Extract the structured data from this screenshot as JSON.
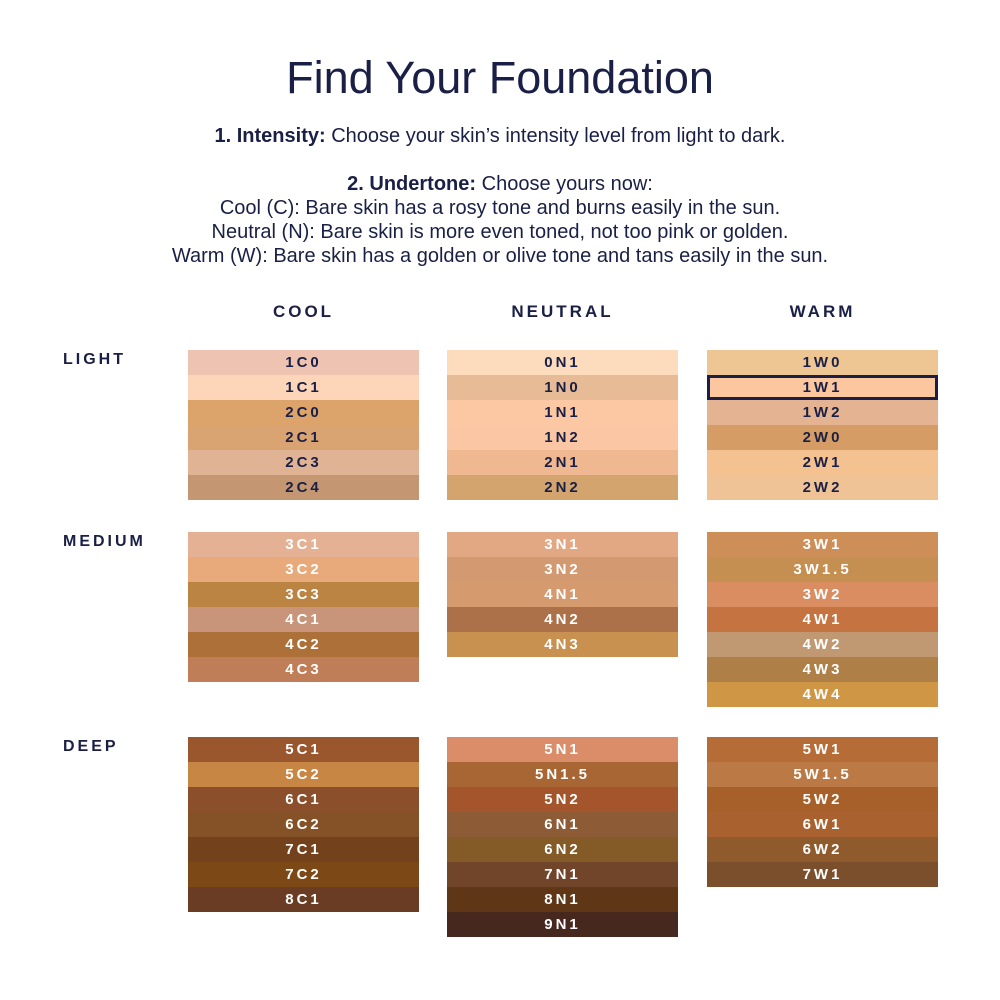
{
  "title": "Find Your Foundation",
  "step1": {
    "label": "1. Intensity:",
    "text": "Choose your skin’s intensity level from light to dark."
  },
  "step2": {
    "label": "2. Undertone:",
    "text": "Choose yours now:",
    "cool": "Cool (C): Bare skin has a rosy tone and burns easily in the sun.",
    "neutral": "Neutral (N): Bare skin is more even toned, not too pink or golden.",
    "warm": "Warm (W): Bare skin has a golden or olive tone and tans easily in the sun."
  },
  "columns": [
    "COOL",
    "NEUTRAL",
    "WARM"
  ],
  "text_colors": {
    "dark": "#1a1f45",
    "light": "#ffffff"
  },
  "selected_shade": "1W1",
  "groups": [
    {
      "label": "LIGHT",
      "text": "dark",
      "blocks": [
        [
          [
            "1C0",
            "#efc3b1"
          ],
          [
            "1C1",
            "#fdd5b8"
          ],
          [
            "2C0",
            "#dca46a"
          ],
          [
            "2C1",
            "#d9a472"
          ],
          [
            "2C3",
            "#dfb394"
          ],
          [
            "2C4",
            "#c49672"
          ]
        ],
        [
          [
            "0N1",
            "#fcdcbd"
          ],
          [
            "1N0",
            "#e6bb96"
          ],
          [
            "1N1",
            "#fcc8a3"
          ],
          [
            "1N2",
            "#fbc6a3"
          ],
          [
            "2N1",
            "#f0b891"
          ],
          [
            "2N2",
            "#d3a46e"
          ]
        ],
        [
          [
            "1W0",
            "#edc694"
          ],
          [
            "1W1",
            "#fcc79f"
          ],
          [
            "1W2",
            "#e4b391"
          ],
          [
            "2W0",
            "#d59d65"
          ],
          [
            "2W1",
            "#f4c190"
          ],
          [
            "2W2",
            "#efc396"
          ]
        ]
      ]
    },
    {
      "label": "MEDIUM",
      "text": "light",
      "blocks": [
        [
          [
            "3C1",
            "#e5b195"
          ],
          [
            "3C2",
            "#e8a97b"
          ],
          [
            "3C3",
            "#bc8443"
          ],
          [
            "4C1",
            "#c9957a"
          ],
          [
            "4C2",
            "#ad7038"
          ],
          [
            "4C3",
            "#bf7d58"
          ]
        ],
        [
          [
            "3N1",
            "#e1a883"
          ],
          [
            "3N2",
            "#d39a72"
          ],
          [
            "4N1",
            "#d59b6f"
          ],
          [
            "4N2",
            "#ac7148"
          ],
          [
            "4N3",
            "#c99150"
          ]
        ],
        [
          [
            "3W1",
            "#cd8f57"
          ],
          [
            "3W1.5",
            "#c58f52"
          ],
          [
            "3W2",
            "#da8d60"
          ],
          [
            "4W1",
            "#c57441"
          ],
          [
            "4W2",
            "#c09872"
          ],
          [
            "4W3",
            "#ae7f47"
          ],
          [
            "4W4",
            "#cf9745"
          ]
        ]
      ]
    },
    {
      "label": "DEEP",
      "text": "light",
      "blocks": [
        [
          [
            "5C1",
            "#9a562d"
          ],
          [
            "5C2",
            "#c88644"
          ],
          [
            "6C1",
            "#8b4f2c"
          ],
          [
            "6C2",
            "#845226"
          ],
          [
            "7C1",
            "#73421d"
          ],
          [
            "7C2",
            "#7c4916"
          ],
          [
            "8C1",
            "#6a3c23"
          ]
        ],
        [
          [
            "5N1",
            "#db8d69"
          ],
          [
            "5N1.5",
            "#a96635"
          ],
          [
            "5N2",
            "#a5552c"
          ],
          [
            "6N1",
            "#8d5b35"
          ],
          [
            "6N2",
            "#845a26"
          ],
          [
            "7N1",
            "#71452a"
          ],
          [
            "8N1",
            "#5f3717"
          ],
          [
            "9N1",
            "#46281f"
          ]
        ],
        [
          [
            "5W1",
            "#b56c37"
          ],
          [
            "5W1.5",
            "#bb7a45"
          ],
          [
            "5W2",
            "#a8602a"
          ],
          [
            "6W1",
            "#a9612f"
          ],
          [
            "6W2",
            "#8f5a2c"
          ],
          [
            "7W1",
            "#7b4f2c"
          ]
        ]
      ]
    }
  ]
}
